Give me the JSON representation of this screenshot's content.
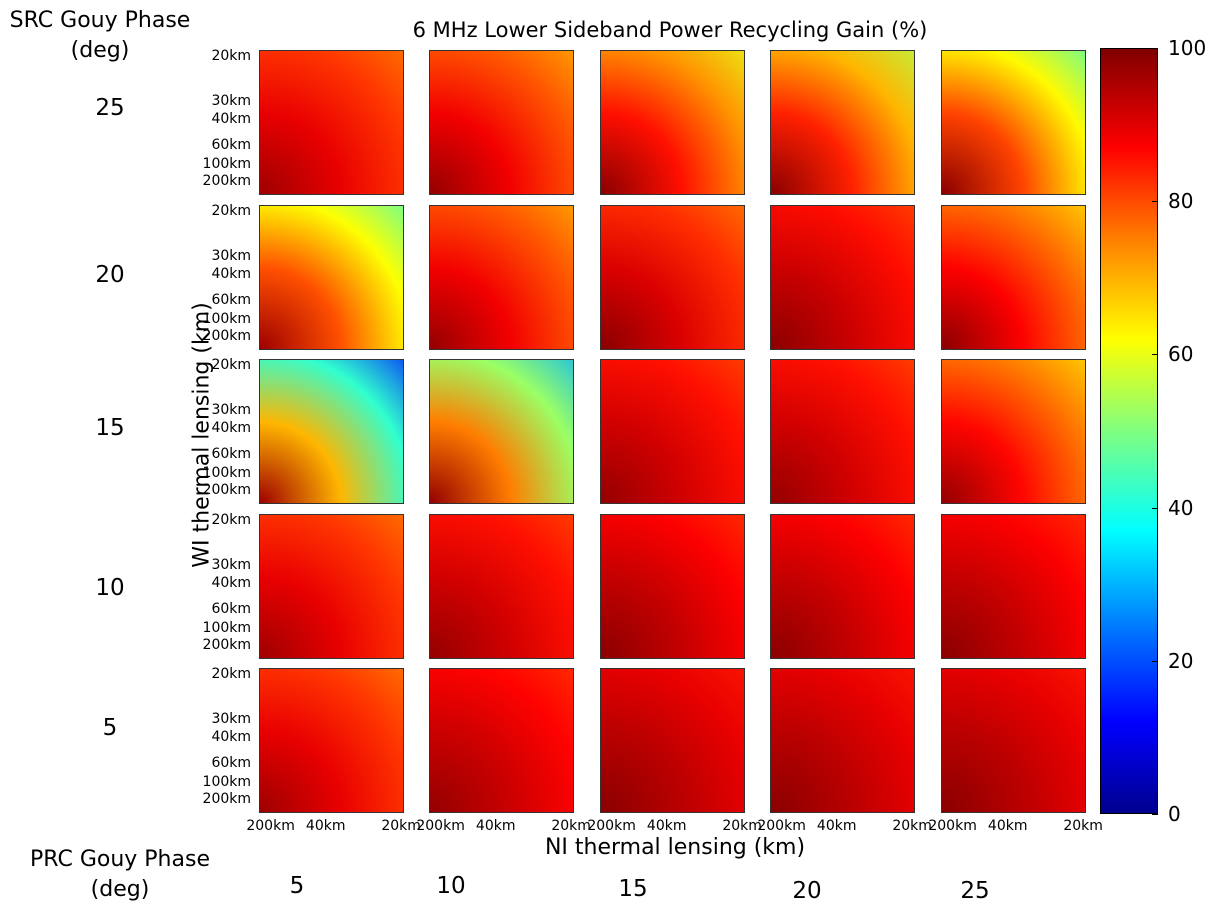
{
  "chart_data": {
    "type": "heatmap",
    "title": "6 MHz Lower Sideband Power Recycling Gain (%)",
    "xlabel": "NI thermal lensing (km)",
    "ylabel": "WI thermal lensing (km)",
    "row_group_title": "SRC Gouy Phase\n(deg)",
    "col_group_title": "PRC Gouy Phase\n(deg)",
    "src_gouy_phase": [
      "25",
      "20",
      "15",
      "10",
      "5"
    ],
    "prc_gouy_phase": [
      "5",
      "10",
      "15",
      "20",
      "25"
    ],
    "x_ticks": [
      "200km",
      "40km",
      "20km"
    ],
    "y_ticks": [
      "20km",
      "30km",
      "40km",
      "60km",
      "100km",
      "200km"
    ],
    "colorbar": {
      "min": 0,
      "max": 100,
      "ticks": [
        "0",
        "20",
        "40",
        "60",
        "80",
        "100"
      ]
    },
    "colormap": [
      "#00008f",
      "#0000ff",
      "#0080ff",
      "#00ffff",
      "#80ff80",
      "#ffff00",
      "#ff8000",
      "#ff0000",
      "#800000"
    ],
    "panels_approx_min_gain": [
      [
        75,
        70,
        60,
        55,
        45
      ],
      [
        45,
        70,
        75,
        80,
        65
      ],
      [
        15,
        30,
        80,
        80,
        65
      ],
      [
        75,
        80,
        82,
        82,
        82
      ],
      [
        75,
        82,
        85,
        85,
        85
      ]
    ],
    "panels_approx_max_gain": [
      [
        97,
        98,
        99,
        99,
        99
      ],
      [
        97,
        98,
        99,
        99,
        99
      ],
      [
        97,
        98,
        98,
        98,
        98
      ],
      [
        97,
        98,
        99,
        99,
        99
      ],
      [
        97,
        98,
        99,
        99,
        99
      ]
    ]
  }
}
